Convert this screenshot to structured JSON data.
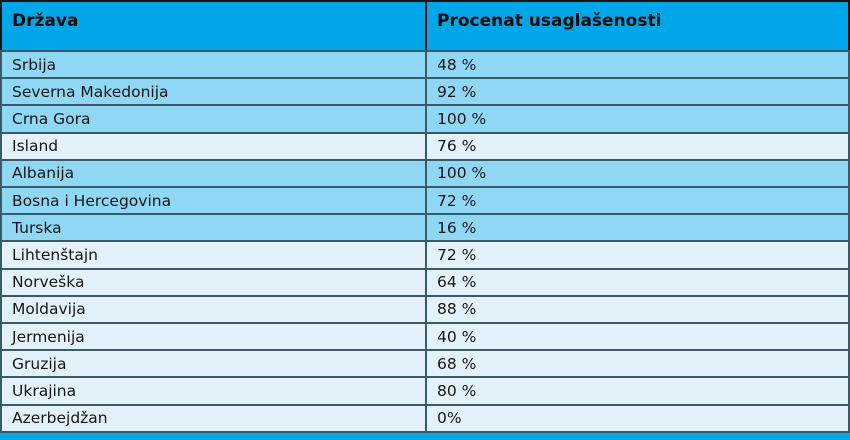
{
  "table": {
    "columns": [
      {
        "label": "Država"
      },
      {
        "label": "Procenat usaglašenosti"
      }
    ],
    "rows": [
      {
        "country": "Srbija",
        "value": "48 %",
        "shade": "dark"
      },
      {
        "country": "Severna Makedonija",
        "value": "92 %",
        "shade": "dark"
      },
      {
        "country": "Crna Gora",
        "value": "100 %",
        "shade": "dark"
      },
      {
        "country": "Island",
        "value": "76 %",
        "shade": "pale"
      },
      {
        "country": "Albanija",
        "value": "100 %",
        "shade": "dark"
      },
      {
        "country": "Bosna i Hercegovina",
        "value": "72 %",
        "shade": "dark"
      },
      {
        "country": "Turska",
        "value": "16 %",
        "shade": "dark"
      },
      {
        "country": "Lihtenštajn",
        "value": "72 %",
        "shade": "pale"
      },
      {
        "country": "Norveška",
        "value": "64 %",
        "shade": "pale"
      },
      {
        "country": "Moldavija",
        "value": "88 %",
        "shade": "pale"
      },
      {
        "country": "Jermenija",
        "value": "40 %",
        "shade": "pale"
      },
      {
        "country": "Gruzija",
        "value": "68 %",
        "shade": "pale"
      },
      {
        "country": "Ukrajina",
        "value": "80 %",
        "shade": "pale"
      },
      {
        "country": "Azerbejdžan",
        "value": "0%",
        "shade": "pale"
      }
    ]
  },
  "colors": {
    "header_bg": "#00a6e8",
    "row_dark": "#8fd8f5",
    "row_pale": "#e3f1fa",
    "border": "#3a5a68",
    "outer_border": "#141414",
    "text": "#161616"
  }
}
